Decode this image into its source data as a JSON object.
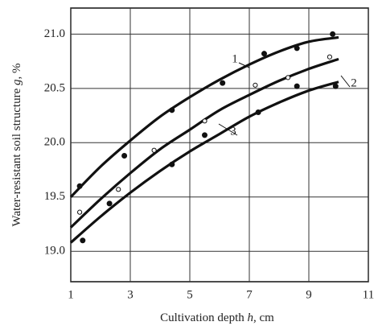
{
  "chart_data": {
    "type": "scatter",
    "xlabel": {
      "before": "Cultivation depth ",
      "var": "h",
      "after": ", cm"
    },
    "ylabel": {
      "before": "Water-resistant soil structure ",
      "var": "g",
      "after": ", %"
    },
    "xlim": [
      1,
      11
    ],
    "xticks": [
      1,
      3,
      5,
      7,
      9,
      11
    ],
    "ylim": [
      18.72,
      21.24
    ],
    "yticks": [
      {
        "value": 19,
        "label": "19.0"
      },
      19.5,
      {
        "value": 20,
        "label": "20.0"
      },
      20.5,
      {
        "value": 21,
        "label": "21.0"
      }
    ],
    "grid": true,
    "fit_x": [
      1,
      2,
      3,
      4,
      5,
      6,
      7,
      8,
      9,
      10
    ],
    "series": [
      {
        "name": "1",
        "color": "#111111",
        "marker": "filled",
        "x": [
          1.3,
          2.8,
          4.4,
          6.1,
          7.5,
          8.6,
          9.8
        ],
        "values": [
          19.6,
          19.88,
          20.3,
          20.55,
          20.82,
          20.87,
          21.0
        ],
        "fit_values": [
          19.5,
          19.78,
          20.02,
          20.24,
          20.42,
          20.58,
          20.72,
          20.84,
          20.93,
          20.97
        ]
      },
      {
        "name": "2",
        "color": "#111111",
        "marker": "open",
        "x": [
          1.3,
          2.6,
          3.8,
          5.5,
          7.2,
          8.3,
          9.7
        ],
        "values": [
          19.36,
          19.57,
          19.93,
          20.2,
          20.53,
          20.6,
          20.79
        ],
        "fit_values": [
          19.22,
          19.48,
          19.72,
          19.94,
          20.12,
          20.3,
          20.44,
          20.57,
          20.68,
          20.77
        ]
      },
      {
        "name": "3",
        "color": "#111111",
        "marker": "filled",
        "x": [
          1.4,
          2.3,
          4.4,
          5.5,
          7.3,
          8.6,
          9.9
        ],
        "values": [
          19.1,
          19.44,
          19.8,
          20.07,
          20.28,
          20.52,
          20.52
        ],
        "fit_values": [
          19.08,
          19.32,
          19.54,
          19.74,
          19.92,
          20.08,
          20.24,
          20.37,
          20.48,
          20.56
        ]
      }
    ]
  }
}
